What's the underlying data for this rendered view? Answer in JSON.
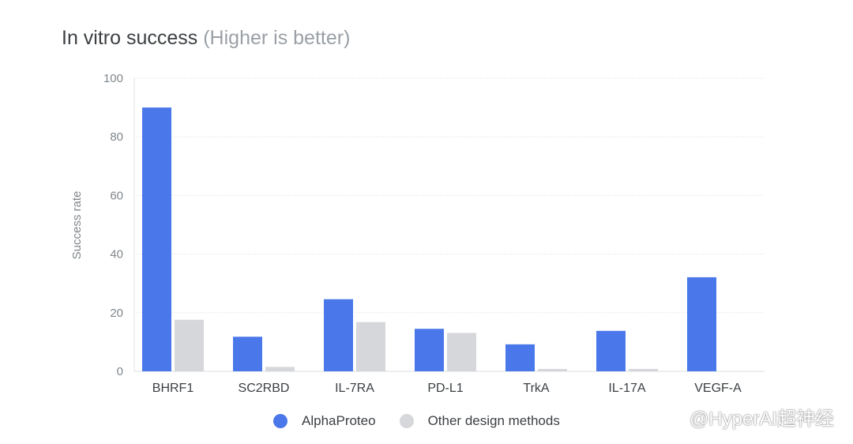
{
  "chart_data": {
    "type": "bar",
    "title": "In vitro success",
    "subtitle": "(Higher is better)",
    "xlabel": "",
    "ylabel": "Success rate",
    "ylim": [
      0,
      100
    ],
    "yticks": [
      0,
      20,
      40,
      60,
      80,
      100
    ],
    "grid": true,
    "legend_position": "bottom-center",
    "categories": [
      "BHRF1",
      "SC2RBD",
      "IL-7RA",
      "PD-L1",
      "TrkA",
      "IL-17A",
      "VEGF-A"
    ],
    "series": [
      {
        "name": "AlphaProteo",
        "color": "#4a78ea",
        "values": [
          90,
          11.8,
          24.6,
          14.5,
          9.2,
          13.8,
          32.1
        ]
      },
      {
        "name": "Other design methods",
        "color": "#d6d7da",
        "values": [
          17.6,
          1.5,
          16.8,
          13.1,
          0.8,
          0.8,
          0
        ]
      }
    ]
  },
  "watermark": "@HyperAI超神经"
}
